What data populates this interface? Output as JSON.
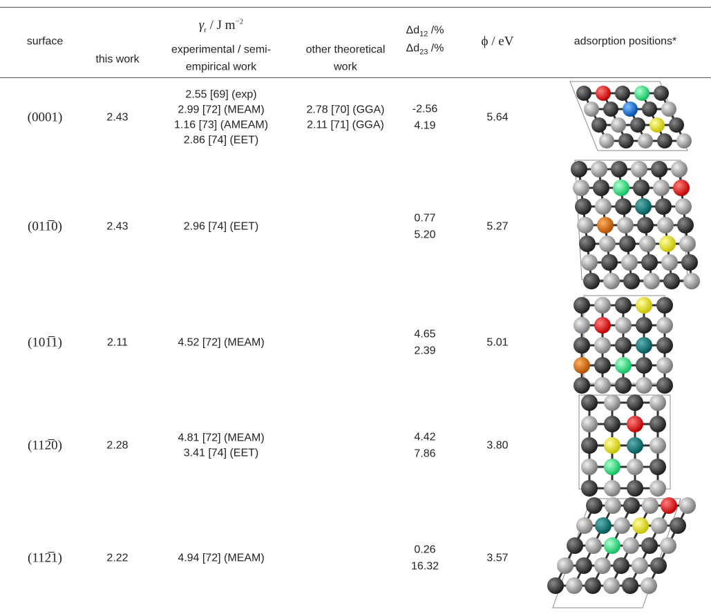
{
  "table": {
    "columns": {
      "surface": "surface",
      "this_work": "this work",
      "gamma": {
        "symbol": "γ",
        "sub": "r",
        "unit": " / J m",
        "sup": "−2"
      },
      "experimental": [
        "experimental / semi-",
        "empirical work"
      ],
      "other": [
        "other theoretical",
        "work"
      ],
      "dd12": {
        "prefix": "Δd",
        "sub": "12",
        "suffix": " /%"
      },
      "dd23": {
        "prefix": "Δd",
        "sub": "23",
        "suffix": " /%"
      },
      "phi": "ϕ / eV",
      "adsorption": "adsorption positions*"
    },
    "rows": [
      {
        "surface": "(0001)",
        "this_work": "2.43",
        "experimental": [
          "2.55 [69] (exp)",
          "2.99 [72] (MEAM)",
          "1.16 [73] (AMEAM)",
          "2.86 [74] (EET)"
        ],
        "other": [
          "2.78 [70] (GGA)",
          "2.11 [71] (GGA)"
        ],
        "dd12": "-2.56",
        "dd23": "4.19",
        "phi": "5.64"
      },
      {
        "surface": "(011̅0)",
        "this_work": "2.43",
        "experimental": [
          "2.96 [74] (EET)"
        ],
        "other": [],
        "dd12": "0.77",
        "dd23": "5.20",
        "phi": "5.27"
      },
      {
        "surface": "(101̅1)",
        "this_work": "2.11",
        "experimental": [
          "4.52 [72] (MEAM)"
        ],
        "other": [],
        "dd12": "4.65",
        "dd23": "2.39",
        "phi": "5.01"
      },
      {
        "surface": "(112̅0)",
        "this_work": "2.28",
        "experimental": [
          "4.81 [72] (MEAM)",
          "3.41 [74] (EET)"
        ],
        "other": [],
        "dd12": "4.42",
        "dd23": "7.86",
        "phi": "3.80"
      },
      {
        "surface": "(112̅1)",
        "this_work": "2.22",
        "experimental": [
          "4.94 [72] (MEAM)"
        ],
        "other": [],
        "dd12": "0.26",
        "dd23": "16.32",
        "phi": "3.57"
      }
    ]
  }
}
